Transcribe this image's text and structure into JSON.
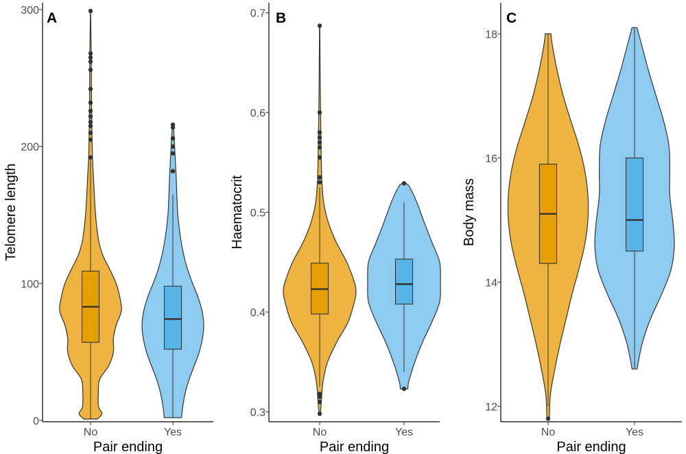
{
  "colors": {
    "no_violin": "#EFB43F",
    "yes_violin": "#8ECBF1",
    "no_box": "#E69F00",
    "yes_box": "#56B4E9",
    "outline": "#333333"
  },
  "chart_data": [
    {
      "type": "violin",
      "panel_label": "A",
      "xlabel": "Pair ending",
      "ylabel": "Telomere length",
      "categories": [
        "No",
        "Yes"
      ],
      "ylim": [
        -1,
        305
      ],
      "yticks": [
        0,
        100,
        200,
        300
      ],
      "ytick_labels": [
        "0",
        "100",
        "200",
        "300"
      ],
      "groups": [
        {
          "category": "No",
          "color": "#EFB43F",
          "box_color": "#E69F00",
          "box": {
            "whisker_low": 1,
            "q1": 57,
            "median": 83,
            "q3": 109,
            "whisker_high": 190
          },
          "outliers": [
            192,
            205,
            210,
            215,
            218,
            222,
            226,
            232,
            242,
            256,
            262,
            265,
            268,
            299
          ],
          "density": [
            [
              1,
              0.3
            ],
            [
              5,
              0.5
            ],
            [
              10,
              0.35
            ],
            [
              20,
              0.34
            ],
            [
              30,
              0.4
            ],
            [
              40,
              0.8
            ],
            [
              50,
              1.0
            ],
            [
              60,
              1.0
            ],
            [
              70,
              1.13
            ],
            [
              80,
              1.35
            ],
            [
              90,
              1.28
            ],
            [
              100,
              1.12
            ],
            [
              110,
              0.85
            ],
            [
              120,
              0.55
            ],
            [
              130,
              0.37
            ],
            [
              140,
              0.28
            ],
            [
              150,
              0.22
            ],
            [
              160,
              0.18
            ],
            [
              170,
              0.15
            ],
            [
              180,
              0.12
            ],
            [
              190,
              0.09
            ],
            [
              200,
              0.07
            ],
            [
              210,
              0.06
            ],
            [
              220,
              0.05
            ],
            [
              240,
              0.04
            ],
            [
              260,
              0.035
            ],
            [
              280,
              0.02
            ],
            [
              299,
              0.005
            ]
          ]
        },
        {
          "category": "Yes",
          "color": "#8ECBF1",
          "box_color": "#56B4E9",
          "box": {
            "whisker_low": 2,
            "q1": 52,
            "median": 74,
            "q3": 98,
            "whisker_high": 165
          },
          "outliers": [
            182,
            195,
            200,
            206,
            214,
            216
          ],
          "density": [
            [
              2,
              0.35
            ],
            [
              10,
              0.4
            ],
            [
              20,
              0.5
            ],
            [
              30,
              0.66
            ],
            [
              40,
              0.87
            ],
            [
              50,
              1.07
            ],
            [
              60,
              1.2
            ],
            [
              70,
              1.25
            ],
            [
              80,
              1.18
            ],
            [
              90,
              1.02
            ],
            [
              100,
              0.8
            ],
            [
              110,
              0.6
            ],
            [
              120,
              0.45
            ],
            [
              130,
              0.34
            ],
            [
              140,
              0.26
            ],
            [
              150,
              0.2
            ],
            [
              160,
              0.17
            ],
            [
              170,
              0.15
            ],
            [
              180,
              0.13
            ],
            [
              190,
              0.1
            ],
            [
              200,
              0.07
            ],
            [
              210,
              0.04
            ],
            [
              216,
              0.01
            ]
          ]
        }
      ]
    },
    {
      "type": "violin",
      "panel_label": "B",
      "xlabel": "Pair ending",
      "ylabel": "Haematocrit",
      "categories": [
        "No",
        "Yes"
      ],
      "ylim": [
        0.29,
        0.71
      ],
      "yticks": [
        0.3,
        0.4,
        0.5,
        0.6,
        0.7
      ],
      "ytick_labels": [
        "0.3",
        "0.4",
        "0.5",
        "0.6",
        "0.7"
      ],
      "groups": [
        {
          "category": "No",
          "color": "#EFB43F",
          "box_color": "#E69F00",
          "box": {
            "whisker_low": 0.325,
            "q1": 0.398,
            "median": 0.423,
            "q3": 0.449,
            "whisker_high": 0.525
          },
          "outliers": [
            0.298,
            0.31,
            0.315,
            0.318,
            0.53,
            0.535,
            0.555,
            0.565,
            0.57,
            0.575,
            0.58,
            0.6,
            0.687
          ],
          "density": [
            [
              0.298,
              0.02
            ],
            [
              0.31,
              0.05
            ],
            [
              0.33,
              0.1
            ],
            [
              0.35,
              0.24
            ],
            [
              0.37,
              0.52
            ],
            [
              0.39,
              0.86
            ],
            [
              0.41,
              1.05
            ],
            [
              0.42,
              1.1
            ],
            [
              0.43,
              1.05
            ],
            [
              0.45,
              0.82
            ],
            [
              0.47,
              0.5
            ],
            [
              0.49,
              0.26
            ],
            [
              0.51,
              0.12
            ],
            [
              0.53,
              0.07
            ],
            [
              0.55,
              0.05
            ],
            [
              0.58,
              0.035
            ],
            [
              0.62,
              0.02
            ],
            [
              0.66,
              0.01
            ],
            [
              0.687,
              0.005
            ]
          ]
        },
        {
          "category": "Yes",
          "color": "#8ECBF1",
          "box_color": "#56B4E9",
          "box": {
            "whisker_low": 0.34,
            "q1": 0.408,
            "median": 0.428,
            "q3": 0.453,
            "whisker_high": 0.51
          },
          "outliers": [
            0.323,
            0.529
          ],
          "density": [
            [
              0.323,
              0.1
            ],
            [
              0.33,
              0.12
            ],
            [
              0.35,
              0.28
            ],
            [
              0.37,
              0.48
            ],
            [
              0.39,
              0.72
            ],
            [
              0.41,
              0.92
            ],
            [
              0.43,
              0.94
            ],
            [
              0.45,
              0.92
            ],
            [
              0.47,
              0.72
            ],
            [
              0.49,
              0.52
            ],
            [
              0.51,
              0.33
            ],
            [
              0.525,
              0.15
            ],
            [
              0.529,
              0.05
            ]
          ]
        }
      ]
    },
    {
      "type": "violin",
      "panel_label": "C",
      "xlabel": "Pair ending",
      "ylabel": "Body mass",
      "categories": [
        "No",
        "Yes"
      ],
      "ylim": [
        11.75,
        18.5
      ],
      "yticks": [
        12,
        14,
        16,
        18
      ],
      "ytick_labels": [
        "12",
        "14",
        "16",
        "18"
      ],
      "groups": [
        {
          "category": "No",
          "color": "#EFB43F",
          "box_color": "#E69F00",
          "box": {
            "whisker_low": 12.0,
            "q1": 14.3,
            "median": 15.1,
            "q3": 15.9,
            "whisker_high": 18.0
          },
          "outliers": [
            11.8
          ],
          "density": [
            [
              11.8,
              0.03
            ],
            [
              12.2,
              0.06
            ],
            [
              12.6,
              0.17
            ],
            [
              13.0,
              0.3
            ],
            [
              13.4,
              0.45
            ],
            [
              13.8,
              0.6
            ],
            [
              14.2,
              0.77
            ],
            [
              14.6,
              0.92
            ],
            [
              15.0,
              1.0
            ],
            [
              15.4,
              1.0
            ],
            [
              15.8,
              0.92
            ],
            [
              16.2,
              0.77
            ],
            [
              16.6,
              0.57
            ],
            [
              17.0,
              0.38
            ],
            [
              17.4,
              0.23
            ],
            [
              17.8,
              0.11
            ],
            [
              18.0,
              0.07
            ]
          ]
        },
        {
          "category": "Yes",
          "color": "#8ECBF1",
          "box_color": "#56B4E9",
          "box": {
            "whisker_low": 12.6,
            "q1": 14.5,
            "median": 15.0,
            "q3": 16.0,
            "whisker_high": 18.1
          },
          "outliers": [],
          "density": [
            [
              12.6,
              0.06
            ],
            [
              13.0,
              0.18
            ],
            [
              13.4,
              0.38
            ],
            [
              13.8,
              0.65
            ],
            [
              14.2,
              0.88
            ],
            [
              14.6,
              0.96
            ],
            [
              15.0,
              0.92
            ],
            [
              15.4,
              0.85
            ],
            [
              15.8,
              0.85
            ],
            [
              16.2,
              0.83
            ],
            [
              16.6,
              0.7
            ],
            [
              17.0,
              0.52
            ],
            [
              17.4,
              0.34
            ],
            [
              17.8,
              0.18
            ],
            [
              18.1,
              0.06
            ]
          ]
        }
      ]
    }
  ]
}
